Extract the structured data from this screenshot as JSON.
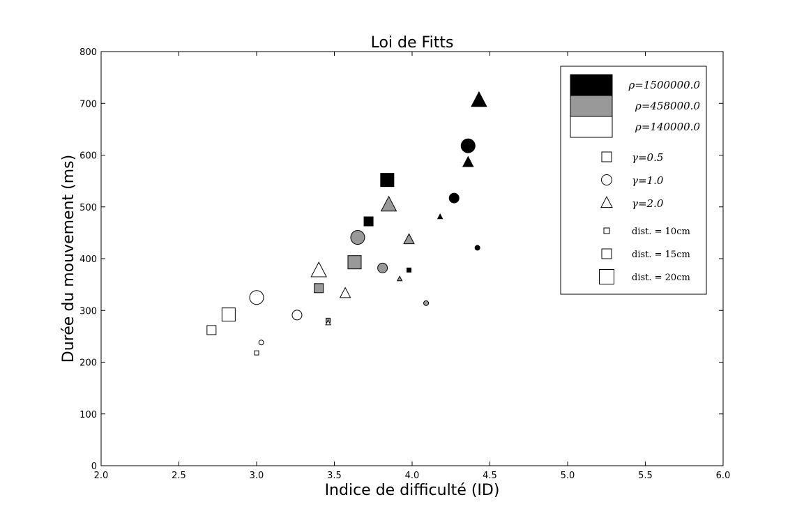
{
  "chart_data": {
    "type": "scatter",
    "title": "Loi de Fitts",
    "xlabel": "Indice de difficulté (ID)",
    "ylabel": "Durée du mouvement (ms)",
    "xlim": [
      2.0,
      6.0
    ],
    "ylim": [
      0,
      800
    ],
    "xticks": [
      "2.0",
      "2.5",
      "3.0",
      "3.5",
      "4.0",
      "4.5",
      "5.0",
      "5.5",
      "6.0"
    ],
    "yticks": [
      "0",
      "100",
      "200",
      "300",
      "400",
      "500",
      "600",
      "700",
      "800"
    ],
    "grid": false,
    "legend_position": "top-right",
    "legend": {
      "rho": [
        {
          "label": "ρ=1500000.0",
          "color": "#000000"
        },
        {
          "label": "ρ=458000.0",
          "color": "#999999"
        },
        {
          "label": "ρ=140000.0",
          "color": "#ffffff"
        }
      ],
      "gamma": [
        {
          "label": "γ=0.5",
          "marker": "square"
        },
        {
          "label": "γ=1.0",
          "marker": "circle"
        },
        {
          "label": "γ=2.0",
          "marker": "triangle"
        }
      ],
      "distance": [
        {
          "label": "dist. = 10cm",
          "size": "small"
        },
        {
          "label": "dist. = 15cm",
          "size": "medium"
        },
        {
          "label": "dist. = 20cm",
          "size": "large"
        }
      ]
    },
    "points": [
      {
        "x": 3.84,
        "y": 552,
        "rho": "1500000.0",
        "gamma": "0.5",
        "dist": "20cm"
      },
      {
        "x": 3.72,
        "y": 472,
        "rho": "1500000.0",
        "gamma": "0.5",
        "dist": "15cm"
      },
      {
        "x": 3.98,
        "y": 378,
        "rho": "1500000.0",
        "gamma": "0.5",
        "dist": "10cm"
      },
      {
        "x": 4.36,
        "y": 618,
        "rho": "1500000.0",
        "gamma": "1.0",
        "dist": "20cm"
      },
      {
        "x": 4.27,
        "y": 517,
        "rho": "1500000.0",
        "gamma": "1.0",
        "dist": "15cm"
      },
      {
        "x": 4.42,
        "y": 421,
        "rho": "1500000.0",
        "gamma": "1.0",
        "dist": "10cm"
      },
      {
        "x": 4.43,
        "y": 706,
        "rho": "1500000.0",
        "gamma": "2.0",
        "dist": "20cm"
      },
      {
        "x": 4.36,
        "y": 586,
        "rho": "1500000.0",
        "gamma": "2.0",
        "dist": "15cm"
      },
      {
        "x": 4.18,
        "y": 481,
        "rho": "1500000.0",
        "gamma": "2.0",
        "dist": "10cm"
      },
      {
        "x": 3.63,
        "y": 393,
        "rho": "458000.0",
        "gamma": "0.5",
        "dist": "20cm"
      },
      {
        "x": 3.4,
        "y": 343,
        "rho": "458000.0",
        "gamma": "0.5",
        "dist": "15cm"
      },
      {
        "x": 3.46,
        "y": 281,
        "rho": "458000.0",
        "gamma": "0.5",
        "dist": "10cm"
      },
      {
        "x": 3.65,
        "y": 441,
        "rho": "458000.0",
        "gamma": "1.0",
        "dist": "20cm"
      },
      {
        "x": 3.81,
        "y": 382,
        "rho": "458000.0",
        "gamma": "1.0",
        "dist": "15cm"
      },
      {
        "x": 4.09,
        "y": 314,
        "rho": "458000.0",
        "gamma": "1.0",
        "dist": "10cm"
      },
      {
        "x": 3.85,
        "y": 504,
        "rho": "458000.0",
        "gamma": "2.0",
        "dist": "20cm"
      },
      {
        "x": 3.98,
        "y": 437,
        "rho": "458000.0",
        "gamma": "2.0",
        "dist": "15cm"
      },
      {
        "x": 3.92,
        "y": 361,
        "rho": "458000.0",
        "gamma": "2.0",
        "dist": "10cm"
      },
      {
        "x": 2.82,
        "y": 292,
        "rho": "140000.0",
        "gamma": "0.5",
        "dist": "20cm"
      },
      {
        "x": 2.71,
        "y": 262,
        "rho": "140000.0",
        "gamma": "0.5",
        "dist": "15cm"
      },
      {
        "x": 3.0,
        "y": 218,
        "rho": "140000.0",
        "gamma": "0.5",
        "dist": "10cm"
      },
      {
        "x": 3.0,
        "y": 325,
        "rho": "140000.0",
        "gamma": "1.0",
        "dist": "20cm"
      },
      {
        "x": 3.26,
        "y": 291,
        "rho": "140000.0",
        "gamma": "1.0",
        "dist": "15cm"
      },
      {
        "x": 3.03,
        "y": 238,
        "rho": "140000.0",
        "gamma": "1.0",
        "dist": "10cm"
      },
      {
        "x": 3.4,
        "y": 377,
        "rho": "140000.0",
        "gamma": "2.0",
        "dist": "20cm"
      },
      {
        "x": 3.57,
        "y": 333,
        "rho": "140000.0",
        "gamma": "2.0",
        "dist": "15cm"
      },
      {
        "x": 3.46,
        "y": 276,
        "rho": "140000.0",
        "gamma": "2.0",
        "dist": "10cm"
      }
    ]
  }
}
